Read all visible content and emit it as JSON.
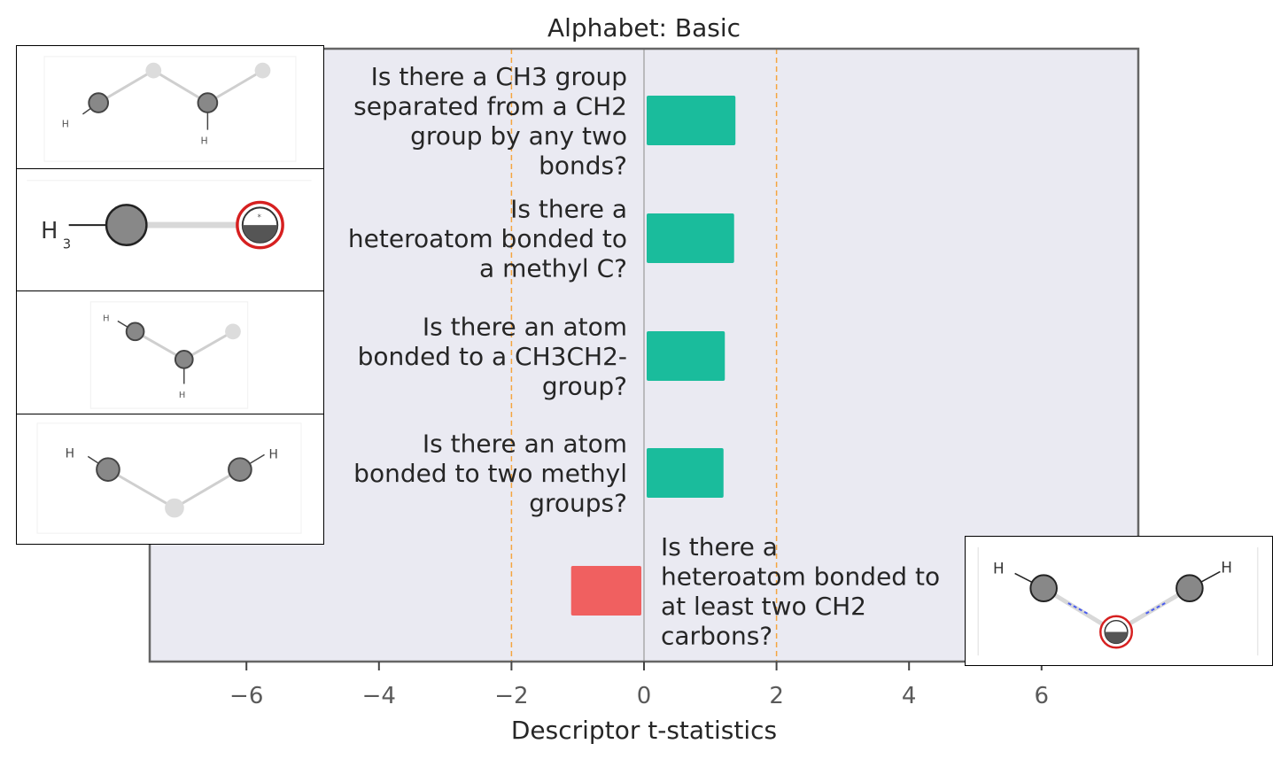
{
  "chart_data": {
    "type": "bar",
    "orientation": "horizontal",
    "title": "Alphabet: Basic",
    "xlabel": "Descriptor t-statistics",
    "ylabel": "",
    "xlim": [
      -7.5,
      7.5
    ],
    "xticks": [
      -6,
      -4,
      -2,
      0,
      2,
      4,
      6
    ],
    "xtick_labels": [
      "−6",
      "−4",
      "−2",
      "0",
      "2",
      "4",
      "6"
    ],
    "significance_lines": [
      -2,
      2
    ],
    "grid": false,
    "colors": {
      "positive": "#1abc9c",
      "negative": "#f06060",
      "threshold": "#f5a540",
      "background": "#eaeaf2"
    },
    "bars": [
      {
        "label": "Is there a CH3 group separated from a CH2 group by any two bonds?",
        "lines": [
          "Is there a CH3 group",
          "separated from a CH2",
          "group by any two",
          "bonds?"
        ],
        "value": 1.38
      },
      {
        "label": "Is there a heteroatom bonded to a methyl C?",
        "lines": [
          "Is there a",
          "heteroatom bonded to",
          "a methyl C?"
        ],
        "value": 1.36
      },
      {
        "label": "Is there an atom bonded to a CH3CH2- group?",
        "lines": [
          "Is there an atom",
          "bonded to a CH3CH2-",
          "group?"
        ],
        "value": 1.22
      },
      {
        "label": "Is there an atom bonded to two methyl groups?",
        "lines": [
          "Is there an atom",
          "bonded to two methyl",
          "groups?"
        ],
        "value": 1.2
      },
      {
        "label": "Is there a heteroatom bonded to at least two CH2 carbons?",
        "lines": [
          "Is there a",
          "heteroatom bonded to",
          "at least two CH2",
          "carbons?"
        ],
        "value": -1.1
      }
    ]
  },
  "molecule_icons": [
    "chain-fragment-icon",
    "methyl-heteroatom-icon",
    "ethyl-fragment-icon",
    "dimethyl-fragment-icon",
    "heteroatom-bis-ch2-icon"
  ],
  "molecule_labels": {
    "h3": "H",
    "h3_sub": "3"
  }
}
